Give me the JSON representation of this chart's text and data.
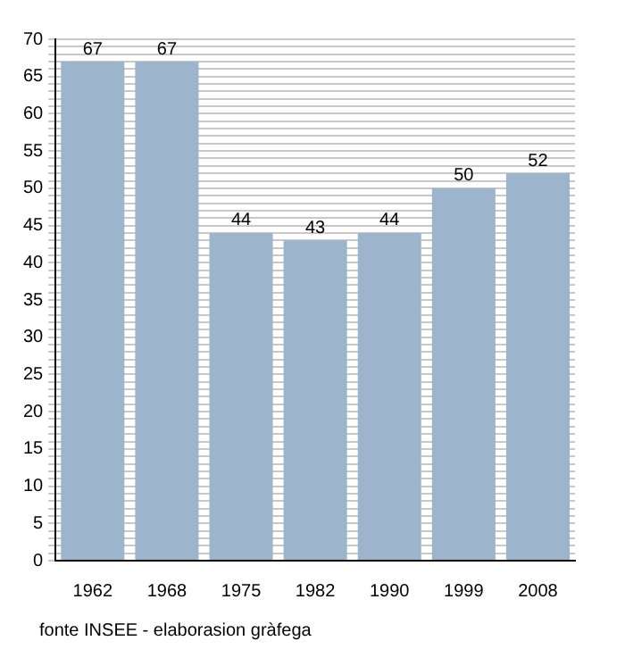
{
  "chart_data": {
    "type": "bar",
    "categories": [
      "1962",
      "1968",
      "1975",
      "1982",
      "1990",
      "1999",
      "2008"
    ],
    "values": [
      67,
      67,
      44,
      43,
      44,
      50,
      52
    ],
    "color": "#9cb4cc",
    "ylim": [
      0,
      70
    ],
    "yticks": [
      0,
      {
        "value": 1,
        "label": null
      },
      {
        "value": 2,
        "label": null
      },
      {
        "value": 3,
        "label": null
      },
      {
        "value": 4,
        "label": null
      },
      5,
      {
        "value": 6,
        "label": null
      },
      {
        "value": 7,
        "label": null
      },
      {
        "value": 8,
        "label": null
      },
      {
        "value": 9,
        "label": null
      },
      10,
      {
        "value": 11,
        "label": null
      },
      {
        "value": 12,
        "label": null
      },
      {
        "value": 13,
        "label": null
      },
      {
        "value": 14,
        "label": null
      },
      15,
      {
        "value": 16,
        "label": null
      },
      {
        "value": 17,
        "label": null
      },
      {
        "value": 18,
        "label": null
      },
      {
        "value": 19,
        "label": null
      },
      20,
      {
        "value": 21,
        "label": null
      },
      {
        "value": 22,
        "label": null
      },
      {
        "value": 23,
        "label": null
      },
      {
        "value": 24,
        "label": null
      },
      25,
      {
        "value": 26,
        "label": null
      },
      {
        "value": 27,
        "label": null
      },
      {
        "value": 28,
        "label": null
      },
      {
        "value": 29,
        "label": null
      },
      30,
      {
        "value": 31,
        "label": null
      },
      {
        "value": 32,
        "label": null
      },
      {
        "value": 33,
        "label": null
      },
      {
        "value": 34,
        "label": null
      },
      35,
      {
        "value": 36,
        "label": null
      },
      {
        "value": 37,
        "label": null
      },
      {
        "value": 38,
        "label": null
      },
      {
        "value": 39,
        "label": null
      },
      40,
      {
        "value": 41,
        "label": null
      },
      {
        "value": 42,
        "label": null
      },
      {
        "value": 43,
        "label": null
      },
      {
        "value": 44,
        "label": null
      },
      45,
      {
        "value": 46,
        "label": null
      },
      {
        "value": 47,
        "label": null
      },
      {
        "value": 48,
        "label": null
      },
      {
        "value": 49,
        "label": null
      },
      50,
      {
        "value": 51,
        "label": null
      },
      {
        "value": 52,
        "label": null
      },
      {
        "value": 53,
        "label": null
      },
      {
        "value": 54,
        "label": null
      },
      55,
      {
        "value": 56,
        "label": null
      },
      {
        "value": 57,
        "label": null
      },
      {
        "value": 58,
        "label": null
      },
      {
        "value": 59,
        "label": null
      },
      60,
      {
        "value": 61,
        "label": null
      },
      {
        "value": 62,
        "label": null
      },
      {
        "value": 63,
        "label": null
      },
      {
        "value": 64,
        "label": null
      },
      65,
      {
        "value": 66,
        "label": null
      },
      {
        "value": 67,
        "label": null
      },
      {
        "value": 68,
        "label": null
      },
      {
        "value": 69,
        "label": null
      },
      70
    ],
    "grid": "y",
    "legend": false,
    "data_labels": true,
    "annotations": [
      "fonte INSEE - elaborasion gràfega"
    ]
  }
}
